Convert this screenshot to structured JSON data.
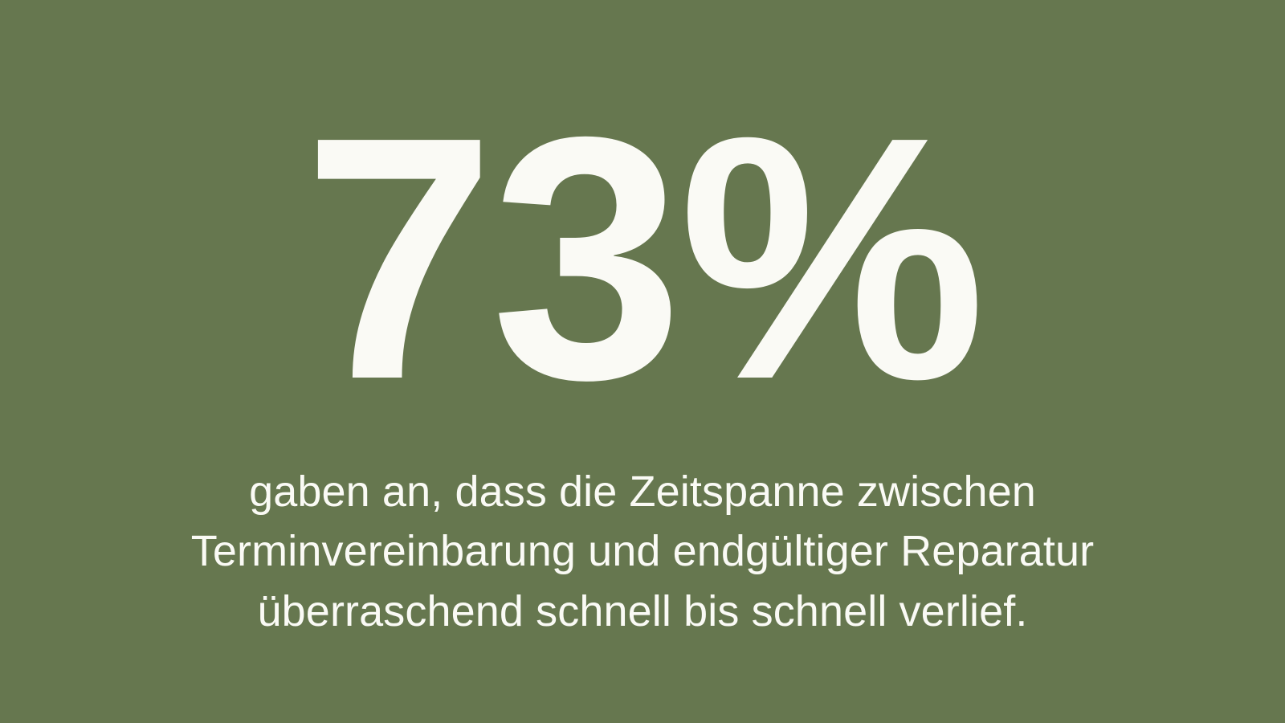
{
  "colors": {
    "background": "#66774F",
    "text": "#FAFAF5"
  },
  "stat": {
    "value": "73%",
    "description_lines": {
      "0": "gaben an, dass die Zeitspanne zwischen",
      "1": "Terminvereinbarung und endgültiger Reparatur",
      "2": "überraschend schnell bis schnell verlief."
    },
    "description": "gaben an, dass die Zeitspanne zwischen Terminvereinbarung und endgültiger Reparatur überraschend schnell bis schnell verlief."
  },
  "chart_data": {
    "type": "table",
    "title": "73%",
    "values": [
      73
    ],
    "unit": "%",
    "caption": "gaben an, dass die Zeitspanne zwischen Terminvereinbarung und endgültiger Reparatur überraschend schnell bis schnell verlief.",
    "layout_hints": {
      "style": "big-number statistic callout",
      "alignment": "center",
      "background": "#66774F",
      "text_color": "#FAFAF5"
    }
  }
}
